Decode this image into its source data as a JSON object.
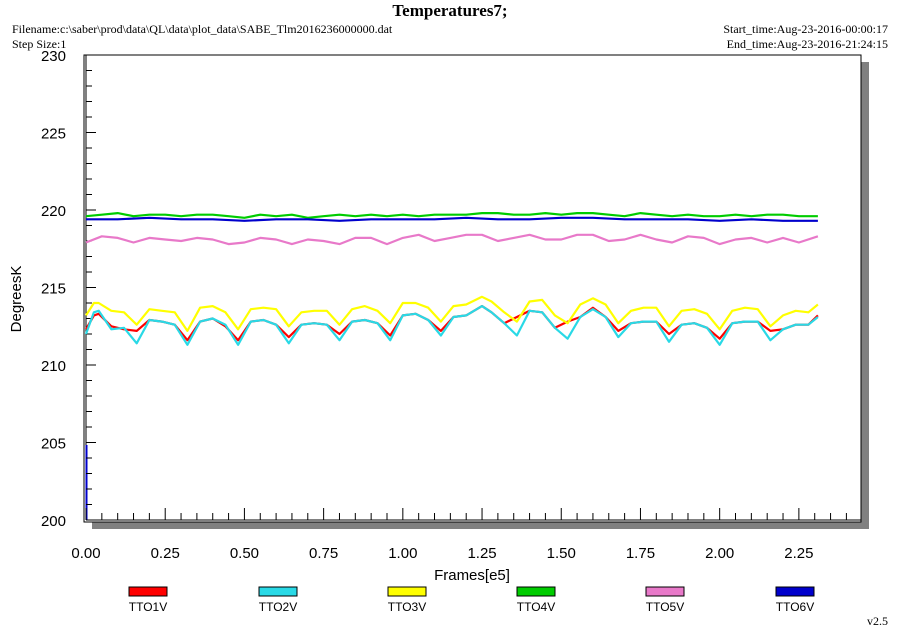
{
  "header": {
    "title": "Temperatures7;",
    "filename": "Filename:c:\\saber\\prod\\data\\QL\\data\\plot_data\\SABE_Tlm2016236000000.dat",
    "step_size": "Step Size:1",
    "start_time": "Start_time:Aug-23-2016-00:00:17",
    "end_time": "End_time:Aug-23-2016-21:24:15",
    "version": "v2.5"
  },
  "chart_data": {
    "type": "line",
    "title": "Temperatures7;",
    "xlabel": "Frames[e5]",
    "ylabel": "DegreesK",
    "xlim": [
      0,
      2.4
    ],
    "ylim": [
      200,
      230
    ],
    "x_ticks": [
      "0.00",
      "0.25",
      "0.50",
      "0.75",
      "1.00",
      "1.25",
      "1.50",
      "1.75",
      "2.00",
      "2.25"
    ],
    "y_ticks": [
      "200",
      "205",
      "210",
      "215",
      "220",
      "225",
      "230"
    ],
    "grid": false,
    "legend_position": "bottom",
    "series": [
      {
        "name": "TTO1V",
        "color": "#ff0000",
        "x": [
          0.0,
          0.025,
          0.04,
          0.08,
          0.12,
          0.16,
          0.2,
          0.24,
          0.28,
          0.32,
          0.36,
          0.4,
          0.44,
          0.48,
          0.52,
          0.56,
          0.6,
          0.64,
          0.68,
          0.72,
          0.76,
          0.8,
          0.84,
          0.88,
          0.92,
          0.96,
          1.0,
          1.04,
          1.08,
          1.12,
          1.16,
          1.2,
          1.25,
          1.28,
          1.32,
          1.36,
          1.4,
          1.44,
          1.48,
          1.52,
          1.56,
          1.6,
          1.64,
          1.68,
          1.72,
          1.76,
          1.8,
          1.84,
          1.88,
          1.92,
          1.96,
          2.0,
          2.04,
          2.08,
          2.12,
          2.16,
          2.2,
          2.24,
          2.28,
          2.31
        ],
        "values": [
          212.3,
          213.2,
          213.3,
          212.5,
          212.3,
          212.2,
          212.9,
          212.8,
          212.6,
          211.6,
          212.8,
          213.0,
          212.5,
          211.6,
          212.8,
          212.9,
          212.6,
          211.8,
          212.6,
          212.7,
          212.6,
          212.0,
          212.8,
          212.9,
          212.7,
          211.9,
          213.2,
          213.3,
          212.9,
          212.2,
          213.1,
          213.2,
          213.8,
          213.4,
          212.7,
          213.1,
          213.5,
          213.4,
          212.4,
          212.8,
          213.1,
          213.7,
          213.1,
          212.2,
          212.7,
          212.8,
          212.8,
          212.0,
          212.6,
          212.7,
          212.4,
          211.7,
          212.7,
          212.8,
          212.8,
          212.2,
          212.3,
          212.6,
          212.6,
          213.2
        ]
      },
      {
        "name": "TTO2V",
        "color": "#29d9e6",
        "x": [
          0.0,
          0.025,
          0.04,
          0.08,
          0.12,
          0.16,
          0.2,
          0.24,
          0.28,
          0.32,
          0.36,
          0.4,
          0.44,
          0.48,
          0.52,
          0.56,
          0.6,
          0.64,
          0.68,
          0.72,
          0.76,
          0.8,
          0.84,
          0.88,
          0.92,
          0.96,
          1.0,
          1.04,
          1.08,
          1.12,
          1.16,
          1.2,
          1.25,
          1.28,
          1.32,
          1.36,
          1.4,
          1.44,
          1.48,
          1.52,
          1.56,
          1.6,
          1.64,
          1.68,
          1.72,
          1.76,
          1.8,
          1.84,
          1.88,
          1.92,
          1.96,
          2.0,
          2.04,
          2.08,
          2.12,
          2.16,
          2.2,
          2.24,
          2.28,
          2.31
        ],
        "values": [
          212.0,
          213.4,
          213.5,
          212.3,
          212.4,
          211.4,
          212.9,
          212.8,
          212.6,
          211.3,
          212.8,
          213.0,
          212.6,
          211.3,
          212.8,
          212.9,
          212.6,
          211.4,
          212.6,
          212.7,
          212.6,
          211.6,
          212.8,
          212.9,
          212.7,
          211.6,
          213.2,
          213.3,
          212.9,
          211.9,
          213.1,
          213.2,
          213.8,
          213.4,
          212.7,
          211.9,
          213.5,
          213.4,
          212.4,
          211.7,
          213.1,
          213.6,
          213.1,
          211.8,
          212.7,
          212.8,
          212.8,
          211.5,
          212.6,
          212.7,
          212.4,
          211.3,
          212.7,
          212.8,
          212.8,
          211.6,
          212.3,
          212.6,
          212.6,
          213.1
        ]
      },
      {
        "name": "TTO3V",
        "color": "#ffff00",
        "x": [
          0.0,
          0.025,
          0.04,
          0.08,
          0.12,
          0.16,
          0.2,
          0.24,
          0.28,
          0.32,
          0.36,
          0.4,
          0.44,
          0.48,
          0.52,
          0.56,
          0.6,
          0.64,
          0.68,
          0.72,
          0.76,
          0.8,
          0.84,
          0.88,
          0.92,
          0.96,
          1.0,
          1.04,
          1.08,
          1.12,
          1.16,
          1.2,
          1.25,
          1.28,
          1.32,
          1.36,
          1.4,
          1.44,
          1.48,
          1.52,
          1.56,
          1.6,
          1.64,
          1.68,
          1.72,
          1.76,
          1.8,
          1.84,
          1.88,
          1.92,
          1.96,
          2.0,
          2.04,
          2.08,
          2.12,
          2.16,
          2.2,
          2.24,
          2.28,
          2.31
        ],
        "values": [
          213.2,
          214.0,
          214.0,
          213.5,
          213.4,
          212.6,
          213.6,
          213.5,
          213.4,
          212.2,
          213.7,
          213.8,
          213.4,
          212.3,
          213.6,
          213.7,
          213.6,
          212.5,
          213.4,
          213.5,
          213.5,
          212.6,
          213.6,
          213.8,
          213.5,
          212.7,
          214.0,
          214.0,
          213.7,
          212.8,
          213.8,
          213.9,
          214.4,
          214.1,
          213.4,
          212.8,
          214.1,
          214.2,
          213.2,
          212.7,
          213.9,
          214.3,
          213.9,
          212.7,
          213.5,
          213.7,
          213.7,
          212.5,
          213.5,
          213.6,
          213.3,
          212.3,
          213.5,
          213.7,
          213.6,
          212.5,
          213.2,
          213.5,
          213.4,
          213.9
        ]
      },
      {
        "name": "TTO4V",
        "color": "#00cc00",
        "x": [
          0.0,
          0.05,
          0.1,
          0.15,
          0.2,
          0.25,
          0.3,
          0.35,
          0.4,
          0.45,
          0.5,
          0.55,
          0.6,
          0.65,
          0.7,
          0.75,
          0.8,
          0.85,
          0.9,
          0.95,
          1.0,
          1.05,
          1.1,
          1.15,
          1.2,
          1.25,
          1.3,
          1.35,
          1.4,
          1.45,
          1.5,
          1.55,
          1.6,
          1.65,
          1.7,
          1.75,
          1.8,
          1.85,
          1.9,
          1.95,
          2.0,
          2.05,
          2.1,
          2.15,
          2.2,
          2.25,
          2.31
        ],
        "values": [
          219.6,
          219.7,
          219.8,
          219.6,
          219.7,
          219.7,
          219.6,
          219.7,
          219.7,
          219.6,
          219.5,
          219.7,
          219.6,
          219.7,
          219.5,
          219.6,
          219.7,
          219.6,
          219.7,
          219.6,
          219.7,
          219.6,
          219.7,
          219.7,
          219.7,
          219.8,
          219.8,
          219.7,
          219.7,
          219.8,
          219.7,
          219.8,
          219.8,
          219.7,
          219.6,
          219.8,
          219.7,
          219.6,
          219.7,
          219.6,
          219.6,
          219.7,
          219.6,
          219.7,
          219.7,
          219.6,
          219.6
        ]
      },
      {
        "name": "TTO5V",
        "color": "#e879c9",
        "x": [
          0.0,
          0.05,
          0.1,
          0.15,
          0.2,
          0.25,
          0.3,
          0.35,
          0.4,
          0.45,
          0.5,
          0.55,
          0.6,
          0.65,
          0.7,
          0.75,
          0.8,
          0.85,
          0.9,
          0.95,
          1.0,
          1.05,
          1.1,
          1.15,
          1.2,
          1.25,
          1.3,
          1.35,
          1.4,
          1.45,
          1.5,
          1.55,
          1.6,
          1.65,
          1.7,
          1.75,
          1.8,
          1.85,
          1.9,
          1.95,
          2.0,
          2.05,
          2.1,
          2.15,
          2.2,
          2.25,
          2.31
        ],
        "values": [
          217.9,
          218.3,
          218.2,
          217.9,
          218.2,
          218.1,
          218.0,
          218.2,
          218.1,
          217.8,
          217.9,
          218.2,
          218.1,
          217.8,
          218.1,
          218.0,
          217.8,
          218.2,
          218.2,
          217.8,
          218.2,
          218.4,
          218.0,
          218.2,
          218.4,
          218.4,
          218.0,
          218.2,
          218.4,
          218.1,
          218.1,
          218.4,
          218.4,
          218.0,
          218.1,
          218.4,
          218.1,
          217.9,
          218.3,
          218.2,
          217.8,
          218.1,
          218.2,
          217.9,
          218.2,
          217.9,
          218.3
        ]
      },
      {
        "name": "TTO6V",
        "color": "#0000cc",
        "x": [
          0.0,
          0.1,
          0.2,
          0.3,
          0.4,
          0.5,
          0.6,
          0.7,
          0.8,
          0.9,
          1.0,
          1.1,
          1.2,
          1.3,
          1.4,
          1.5,
          1.6,
          1.7,
          1.8,
          1.9,
          2.0,
          2.1,
          2.2,
          2.31
        ],
        "values": [
          219.4,
          219.4,
          219.5,
          219.4,
          219.4,
          219.3,
          219.4,
          219.4,
          219.3,
          219.4,
          219.4,
          219.4,
          219.5,
          219.4,
          219.4,
          219.5,
          219.5,
          219.4,
          219.4,
          219.4,
          219.3,
          219.4,
          219.3,
          219.3
        ]
      }
    ]
  }
}
